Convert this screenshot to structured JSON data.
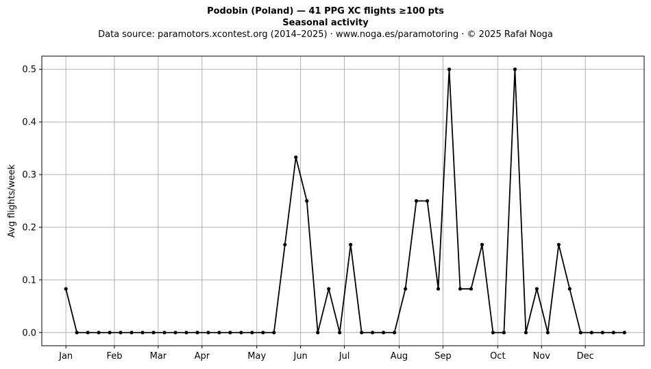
{
  "chart_data": {
    "type": "line",
    "title": "Podobin (Poland)  —  41 PPG XC flights ≥100 pts",
    "subtitle": "Seasonal activity",
    "source": "Data source: paramotors.xcontest.org (2014–2025)  ·  www.noga.es/paramotoring  ·  © 2025 Rafał Noga",
    "xlabel": "",
    "ylabel": "Avg flights/week",
    "x_ticks": [
      {
        "week": 1,
        "label": "Jan"
      },
      {
        "week": 5.43,
        "label": "Feb"
      },
      {
        "week": 9.43,
        "label": "Mar"
      },
      {
        "week": 13.43,
        "label": "Apr"
      },
      {
        "week": 18.43,
        "label": "May"
      },
      {
        "week": 22.43,
        "label": "Jun"
      },
      {
        "week": 26.43,
        "label": "Jul"
      },
      {
        "week": 31.43,
        "label": "Aug"
      },
      {
        "week": 35.43,
        "label": "Sep"
      },
      {
        "week": 40.43,
        "label": "Oct"
      },
      {
        "week": 44.43,
        "label": "Nov"
      },
      {
        "week": 48.43,
        "label": "Dec"
      }
    ],
    "y_ticks": [
      0.0,
      0.1,
      0.2,
      0.3,
      0.4,
      0.5
    ],
    "y_tick_labels": [
      "0.0",
      "0.1",
      "0.2",
      "0.3",
      "0.4",
      "0.5"
    ],
    "xlim": [
      -1.2,
      53.8
    ],
    "ylim": [
      -0.025,
      0.525
    ],
    "grid": true,
    "line_color": "#000000",
    "grid_color": "#b0b0b0",
    "series": [
      {
        "x": [
          1,
          2,
          3,
          4,
          5,
          6,
          7,
          8,
          9,
          10,
          11,
          12,
          13,
          14,
          15,
          16,
          17,
          18,
          19,
          20,
          21,
          22,
          23,
          24,
          25,
          26,
          27,
          28,
          29,
          30,
          31,
          32,
          33,
          34,
          35,
          36,
          37,
          38,
          39,
          40,
          41,
          42,
          43,
          44,
          45,
          46,
          47,
          48,
          49,
          50,
          51,
          52
        ],
        "values": [
          0.083,
          0,
          0,
          0,
          0,
          0,
          0,
          0,
          0,
          0,
          0,
          0,
          0,
          0,
          0,
          0,
          0,
          0,
          0,
          0,
          0.167,
          0.333,
          0.25,
          0,
          0.083,
          0,
          0.167,
          0,
          0,
          0,
          0,
          0.083,
          0.25,
          0.25,
          0.083,
          0.5,
          0.083,
          0.083,
          0.167,
          0,
          0,
          0.5,
          0,
          0.083,
          0,
          0.167,
          0.083,
          0,
          0,
          0,
          0,
          0
        ]
      }
    ]
  }
}
